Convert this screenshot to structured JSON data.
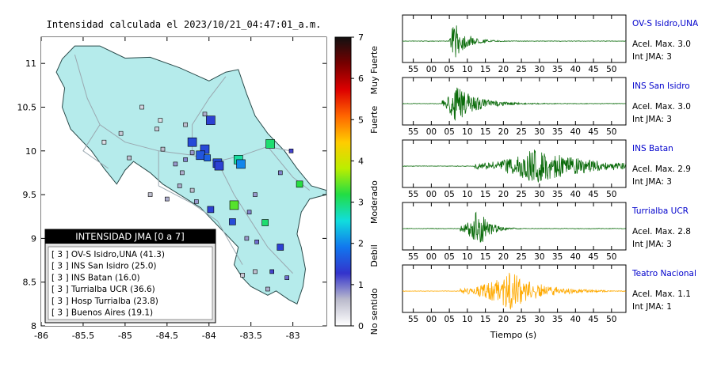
{
  "map": {
    "title": "Intensidad calculada el 2023/10/21_04:47:01_a.m.",
    "xlim": [
      -86,
      -82.6
    ],
    "ylim": [
      8,
      11.3
    ],
    "x_ticks": [
      "-86",
      "-85.5",
      "-85",
      "-84.5",
      "-84",
      "-83.5",
      "-83"
    ],
    "y_ticks": [
      "8",
      "8.5",
      "9",
      "9.5",
      "10",
      "10.5",
      "11"
    ],
    "colors": {
      "land": "#b5ebeb",
      "roads": "#9aa8b0"
    },
    "stations": [
      {
        "lon": -83.98,
        "lat": 10.35,
        "intensity": 1.4,
        "size": "l"
      },
      {
        "lon": -83.27,
        "lat": 10.08,
        "intensity": 3.0,
        "size": "l"
      },
      {
        "lon": -83.02,
        "lat": 10.0,
        "intensity": 1.2,
        "size": "s"
      },
      {
        "lon": -83.65,
        "lat": 9.9,
        "intensity": 2.8,
        "size": "l"
      },
      {
        "lon": -83.62,
        "lat": 9.85,
        "intensity": 2.0,
        "size": "l"
      },
      {
        "lon": -84.2,
        "lat": 10.1,
        "intensity": 1.5,
        "size": "l"
      },
      {
        "lon": -84.05,
        "lat": 10.02,
        "intensity": 1.5,
        "size": "l"
      },
      {
        "lon": -84.1,
        "lat": 9.95,
        "intensity": 1.6,
        "size": "l"
      },
      {
        "lon": -83.9,
        "lat": 9.86,
        "intensity": 1.5,
        "size": "l"
      },
      {
        "lon": -83.88,
        "lat": 9.83,
        "intensity": 1.4,
        "size": "l"
      },
      {
        "lon": -84.02,
        "lat": 9.92,
        "intensity": 1.7,
        "size": "m"
      },
      {
        "lon": -83.7,
        "lat": 9.38,
        "intensity": 3.4,
        "size": "l"
      },
      {
        "lon": -83.98,
        "lat": 9.33,
        "intensity": 1.4,
        "size": "m"
      },
      {
        "lon": -83.72,
        "lat": 9.19,
        "intensity": 1.5,
        "size": "m"
      },
      {
        "lon": -83.33,
        "lat": 9.18,
        "intensity": 3.0,
        "size": "m"
      },
      {
        "lon": -82.92,
        "lat": 9.62,
        "intensity": 3.2,
        "size": "m"
      },
      {
        "lon": -83.15,
        "lat": 8.9,
        "intensity": 1.4,
        "size": "m"
      },
      {
        "lon": -84.2,
        "lat": 9.98,
        "intensity": 0.8,
        "size": "s"
      },
      {
        "lon": -84.28,
        "lat": 9.9,
        "intensity": 0.9,
        "size": "s"
      },
      {
        "lon": -84.32,
        "lat": 9.75,
        "intensity": 0.7,
        "size": "s"
      },
      {
        "lon": -84.4,
        "lat": 9.85,
        "intensity": 0.8,
        "size": "s"
      },
      {
        "lon": -84.55,
        "lat": 10.02,
        "intensity": 0.6,
        "size": "s"
      },
      {
        "lon": -84.62,
        "lat": 10.25,
        "intensity": 0.5,
        "size": "s"
      },
      {
        "lon": -84.8,
        "lat": 10.5,
        "intensity": 0.4,
        "size": "s"
      },
      {
        "lon": -84.58,
        "lat": 10.35,
        "intensity": 0.3,
        "size": "s"
      },
      {
        "lon": -84.95,
        "lat": 9.92,
        "intensity": 0.6,
        "size": "s"
      },
      {
        "lon": -85.25,
        "lat": 10.1,
        "intensity": 0.3,
        "size": "s"
      },
      {
        "lon": -85.05,
        "lat": 10.2,
        "intensity": 0.5,
        "size": "s"
      },
      {
        "lon": -84.7,
        "lat": 9.5,
        "intensity": 0.6,
        "size": "s"
      },
      {
        "lon": -84.5,
        "lat": 9.45,
        "intensity": 0.7,
        "size": "s"
      },
      {
        "lon": -84.15,
        "lat": 9.42,
        "intensity": 0.8,
        "size": "s"
      },
      {
        "lon": -84.05,
        "lat": 10.42,
        "intensity": 0.7,
        "size": "s"
      },
      {
        "lon": -84.28,
        "lat": 10.3,
        "intensity": 0.6,
        "size": "s"
      },
      {
        "lon": -83.45,
        "lat": 9.5,
        "intensity": 0.8,
        "size": "s"
      },
      {
        "lon": -83.52,
        "lat": 9.3,
        "intensity": 0.9,
        "size": "s"
      },
      {
        "lon": -83.55,
        "lat": 9.0,
        "intensity": 0.8,
        "size": "s"
      },
      {
        "lon": -83.43,
        "lat": 8.96,
        "intensity": 1.0,
        "size": "s"
      },
      {
        "lon": -83.25,
        "lat": 8.62,
        "intensity": 1.2,
        "size": "s"
      },
      {
        "lon": -83.45,
        "lat": 8.62,
        "intensity": 0.6,
        "size": "s"
      },
      {
        "lon": -83.6,
        "lat": 8.58,
        "intensity": 0.5,
        "size": "s"
      },
      {
        "lon": -83.07,
        "lat": 8.55,
        "intensity": 1.0,
        "size": "s"
      },
      {
        "lon": -83.3,
        "lat": 8.42,
        "intensity": 0.7,
        "size": "s"
      },
      {
        "lon": -83.15,
        "lat": 9.75,
        "intensity": 0.9,
        "size": "s"
      },
      {
        "lon": -84.35,
        "lat": 9.6,
        "intensity": 0.7,
        "size": "s"
      },
      {
        "lon": -84.2,
        "lat": 9.55,
        "intensity": 0.6,
        "size": "s"
      }
    ],
    "legend": {
      "header": "INTENSIDAD JMA [0 a 7]",
      "rows": [
        "[ 3 ]  OV-S Isidro,UNA (41.3)",
        "[ 3 ]  INS San Isidro (25.0)",
        "[ 3 ]  INS Batan (16.0)",
        "[ 3 ]  Turrialba UCR (36.6)",
        "[ 3 ]  Hosp Turrialba (23.8)",
        "[ 3 ]  Buenos Aires (19.1)"
      ]
    }
  },
  "colorbar": {
    "ticks": [
      "0",
      "1",
      "2",
      "3",
      "4",
      "5",
      "6",
      "7"
    ],
    "labels": [
      "No sentido",
      "Debil",
      "Moderado",
      "Fuerte",
      "Muy Fuerte"
    ],
    "stops": [
      "#ffffff",
      "#bbbbcc",
      "#3333cc",
      "#1177ee",
      "#11dddd",
      "#22dd44",
      "#bbee00",
      "#ffcc00",
      "#ff6600",
      "#dd0000",
      "#770000",
      "#111111"
    ]
  },
  "chart_data": {
    "type": "line",
    "xlabel": "Tiempo (s)",
    "x_ticks": [
      "55",
      "00",
      "05",
      "10",
      "15",
      "20",
      "25",
      "30",
      "35",
      "40",
      "45",
      "50"
    ],
    "series": [
      {
        "name": "OV-S Isidro,UNA",
        "acel": "Acel. Max. 3.0",
        "int": "Int JMA: 3",
        "color": "#0a6b0a",
        "onset": 5,
        "peak": 6,
        "amp": 1.0,
        "decay": 3.5
      },
      {
        "name": "INS San Isidro",
        "acel": "Acel. Max. 3.0",
        "int": "Int JMA: 3",
        "color": "#0a6b0a",
        "onset": 3,
        "peak": 6,
        "amp": 1.0,
        "decay": 6
      },
      {
        "name": "INS Batan",
        "acel": "Acel. Max. 2.9",
        "int": "Int JMA: 3",
        "color": "#0a6b0a",
        "onset": 12,
        "peak": 29,
        "amp": 0.9,
        "decay": 14
      },
      {
        "name": "Turrialba UCR",
        "acel": "Acel. Max. 2.8",
        "int": "Int JMA: 3",
        "color": "#0a6b0a",
        "onset": 8,
        "peak": 13,
        "amp": 1.0,
        "decay": 3
      },
      {
        "name": "Teatro Nacional",
        "acel": "Acel. Max. 1.1",
        "int": "Int JMA: 1",
        "color": "#ffaa00",
        "onset": 8,
        "peak": 22,
        "amp": 0.95,
        "decay": 8
      }
    ]
  }
}
